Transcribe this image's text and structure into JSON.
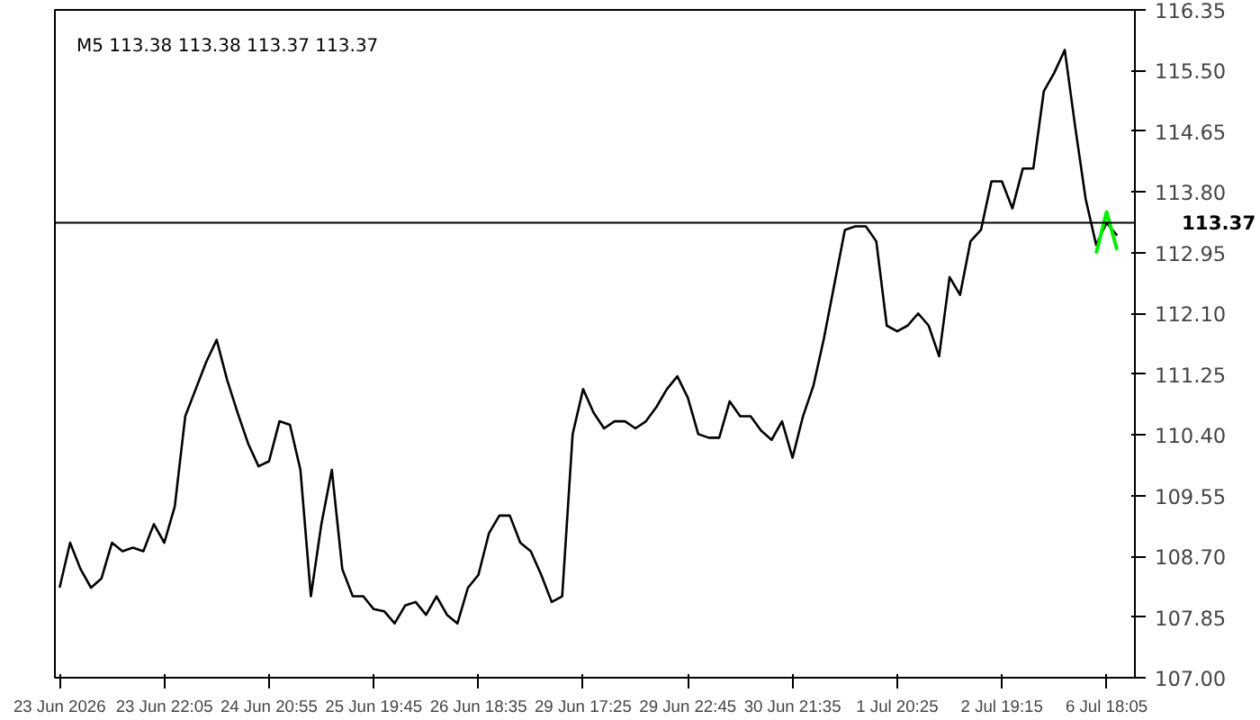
{
  "chart_data": {
    "type": "line",
    "title": "M5  113.38 113.38 113.37 113.37",
    "categories": [
      "23 Jun 2026",
      null,
      null,
      null,
      null,
      null,
      null,
      null,
      null,
      null,
      "23 Jun 22:05",
      null,
      null,
      null,
      null,
      null,
      null,
      null,
      null,
      null,
      "24 Jun 20:55",
      null,
      null,
      null,
      null,
      null,
      null,
      null,
      null,
      null,
      "25 Jun 19:45",
      null,
      null,
      null,
      null,
      null,
      null,
      null,
      null,
      null,
      "26 Jun 18:35",
      null,
      null,
      null,
      null,
      null,
      null,
      null,
      null,
      null,
      "29 Jun 17:25",
      null,
      null,
      null,
      null,
      null,
      null,
      null,
      null,
      null,
      "29 Jun 22:45",
      null,
      null,
      null,
      null,
      null,
      null,
      null,
      null,
      null,
      "30 Jun 21:35",
      null,
      null,
      null,
      null,
      null,
      null,
      null,
      null,
      null,
      "1 Jul 20:25",
      null,
      null,
      null,
      null,
      null,
      null,
      null,
      null,
      null,
      "2 Jul 19:15",
      null,
      null,
      null,
      null,
      null,
      null,
      null,
      null,
      null,
      "6 Jul 18:05",
      null
    ],
    "series": [
      {
        "color": "#000000",
        "values": [
          108.26,
          108.89,
          108.52,
          108.26,
          108.39,
          108.89,
          108.77,
          108.82,
          108.77,
          109.15,
          108.89,
          109.4,
          110.66,
          111.04,
          111.42,
          111.73,
          111.17,
          110.71,
          110.28,
          109.96,
          110.03,
          110.59,
          110.54,
          109.91,
          108.14,
          109.15,
          109.91,
          108.52,
          108.14,
          108.14,
          107.96,
          107.93,
          107.76,
          108.01,
          108.06,
          107.88,
          108.14,
          107.88,
          107.76,
          108.26,
          108.44,
          109.02,
          109.27,
          109.27,
          108.89,
          108.77,
          108.44,
          108.06,
          108.14,
          110.41,
          111.04,
          110.71,
          110.49,
          110.59,
          110.59,
          110.49,
          110.59,
          110.79,
          111.04,
          111.22,
          110.92,
          110.41,
          110.36,
          110.36,
          110.87,
          110.66,
          110.66,
          110.46,
          110.33,
          110.59,
          110.08,
          110.66,
          111.09,
          111.75,
          112.51,
          113.27,
          113.32,
          113.32,
          113.11,
          111.93,
          111.85,
          111.93,
          112.1,
          111.93,
          111.5,
          112.61,
          112.36,
          113.11,
          113.27,
          113.95,
          113.95,
          113.57,
          114.13,
          114.13,
          115.21,
          115.47,
          115.79,
          114.71,
          113.7,
          113.06,
          113.37,
          113.19
        ]
      },
      {
        "color": "#00ee00",
        "values": [
          null,
          null,
          null,
          null,
          null,
          null,
          null,
          null,
          null,
          null,
          null,
          null,
          null,
          null,
          null,
          null,
          null,
          null,
          null,
          null,
          null,
          null,
          null,
          null,
          null,
          null,
          null,
          null,
          null,
          null,
          null,
          null,
          null,
          null,
          null,
          null,
          null,
          null,
          null,
          null,
          null,
          null,
          null,
          null,
          null,
          null,
          null,
          null,
          null,
          null,
          null,
          null,
          null,
          null,
          null,
          null,
          null,
          null,
          null,
          null,
          null,
          null,
          null,
          null,
          null,
          null,
          null,
          null,
          null,
          null,
          null,
          null,
          null,
          null,
          null,
          null,
          null,
          null,
          null,
          null,
          null,
          null,
          null,
          null,
          null,
          null,
          null,
          null,
          null,
          null,
          null,
          null,
          null,
          null,
          null,
          null,
          null,
          null,
          null,
          112.94,
          113.52,
          112.99
        ]
      }
    ],
    "ylim": [
      107.0,
      116.35
    ],
    "yticks": [
      {
        "value": 107.0,
        "label": "107.00"
      },
      {
        "value": 107.85,
        "label": "107.85"
      },
      {
        "value": 108.7,
        "label": "108.70"
      },
      {
        "value": 109.55,
        "label": "109.55"
      },
      {
        "value": 110.4,
        "label": "110.40"
      },
      {
        "value": 111.25,
        "label": "111.25"
      },
      {
        "value": 112.1,
        "label": "112.10"
      },
      {
        "value": 112.95,
        "label": "112.95"
      },
      {
        "value": 113.8,
        "label": "113.80"
      },
      {
        "value": 114.65,
        "label": "114.65"
      },
      {
        "value": 115.5,
        "label": "115.50"
      },
      {
        "value": 116.35,
        "label": "116.35"
      }
    ],
    "ref_lines": [
      {
        "axis": "y",
        "value": 113.37,
        "label": "113.37",
        "color": "#000000"
      }
    ],
    "grid": false,
    "line_style": "solid",
    "marker": "none"
  }
}
